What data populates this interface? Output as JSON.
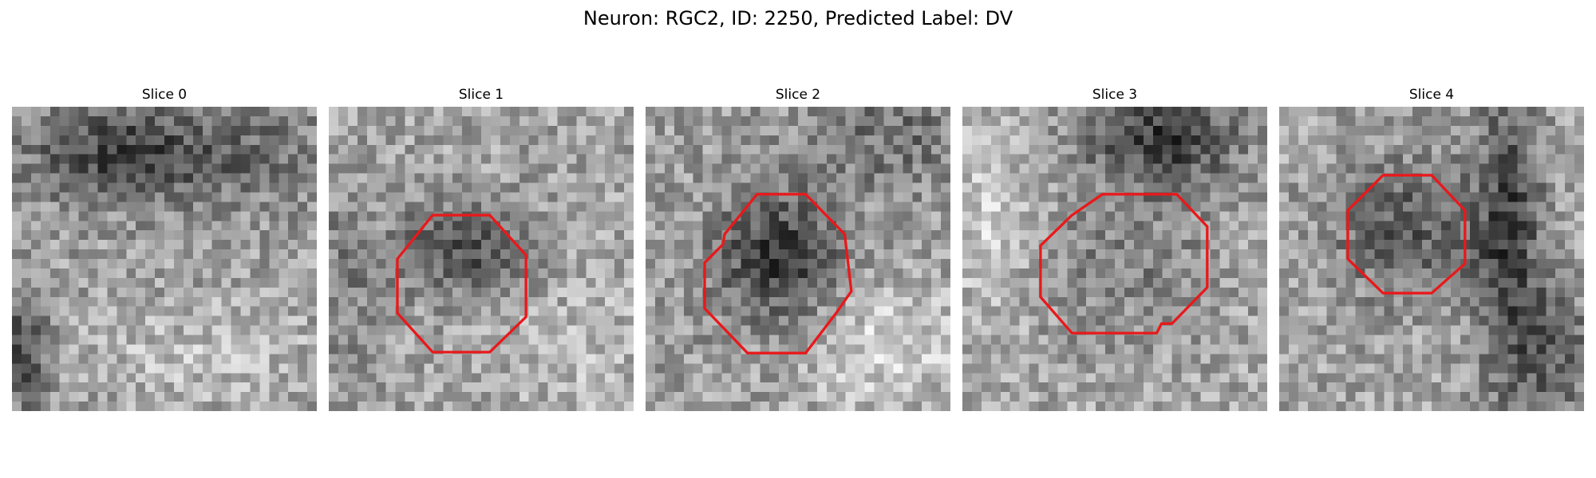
{
  "figure": {
    "title": "Neuron: RGC2, ID: 2250, Predicted Label: DV",
    "outline_color": "#e8191b",
    "colormap": "grayscale"
  },
  "slices": [
    {
      "title": "Slice 0",
      "has_outline": false
    },
    {
      "title": "Slice 1",
      "has_outline": true
    },
    {
      "title": "Slice 2",
      "has_outline": true
    },
    {
      "title": "Slice 3",
      "has_outline": true
    },
    {
      "title": "Slice 4",
      "has_outline": true
    }
  ]
}
